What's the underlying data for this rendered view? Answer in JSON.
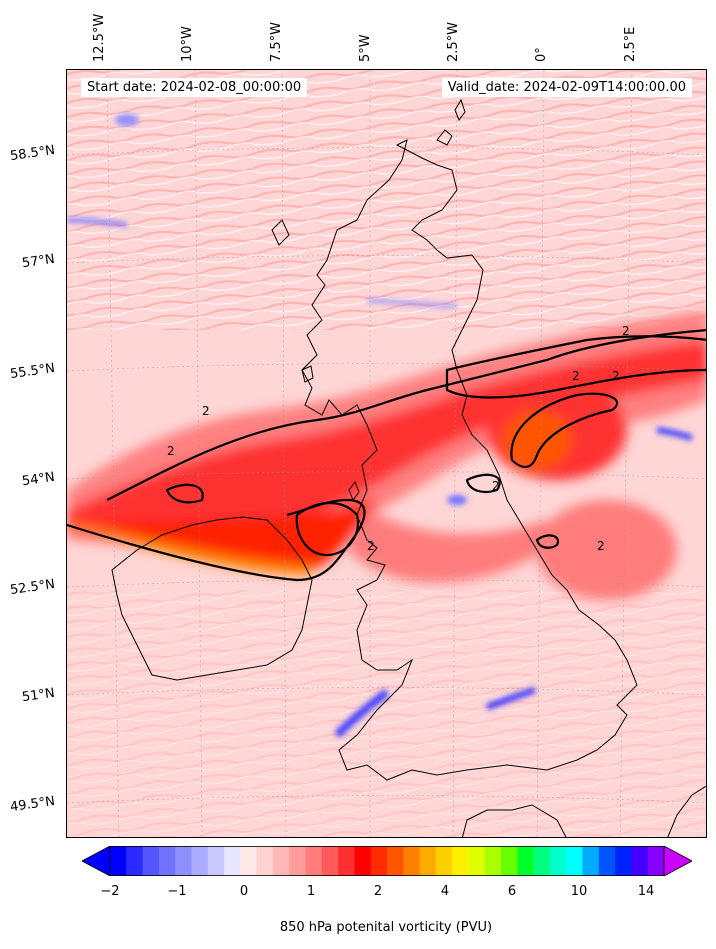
{
  "map": {
    "start_date": "Start date: 2024-02-08_00:00:00",
    "valid_date": "Valid_date: 2024-02-09T14:00:00.00",
    "longitude_labels": [
      "12.5°W",
      "10°W",
      "7.5°W",
      "5°W",
      "2.5°W",
      "0°",
      "2.5°E"
    ],
    "latitude_labels": [
      "58.5°N",
      "57°N",
      "55.5°N",
      "54°N",
      "52.5°N",
      "51°N",
      "49.5°N"
    ],
    "variable": "850 hPa potential vorticity",
    "contour_level_label": "2",
    "contour_level_value": 2
  },
  "colorbar": {
    "label": "850 hPa potenital vorticity (PVU)",
    "tick_labels": [
      "−2",
      "−1",
      "0",
      "1",
      "2",
      "4",
      "6",
      "10",
      "14"
    ],
    "extend": "both",
    "colors": [
      "#0000ff",
      "#2a2aff",
      "#5555ff",
      "#7272ff",
      "#8f8fff",
      "#ababff",
      "#c8c8ff",
      "#e6e6ff",
      "#ffe8e8",
      "#ffd2d2",
      "#ffb8b8",
      "#ff9c9c",
      "#ff7c7c",
      "#ff5a5a",
      "#ff3030",
      "#ff0000",
      "#ff2a00",
      "#ff5500",
      "#ff8000",
      "#ffaa00",
      "#ffd000",
      "#fff000",
      "#ddff00",
      "#aaff00",
      "#66ff00",
      "#00ff2a",
      "#00ff80",
      "#00ffcc",
      "#00ffff",
      "#00aaff",
      "#0055ff",
      "#0022ff",
      "#4400ff",
      "#8800ff"
    ],
    "under_color": "#0000ff",
    "over_color": "#cc00ff"
  }
}
